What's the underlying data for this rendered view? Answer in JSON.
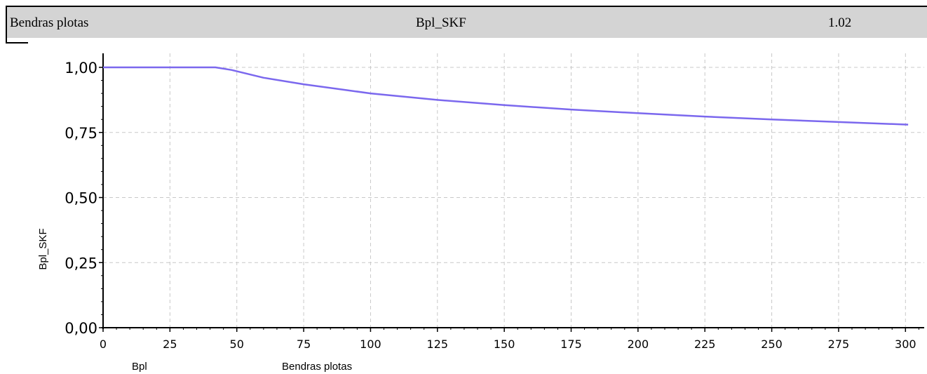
{
  "header": {
    "name": "Bendras plotas",
    "code": "Bpl_SKF",
    "version": "1.02"
  },
  "chart_data": {
    "type": "line",
    "title": "",
    "xlabel_code": "Bpl",
    "xlabel": "Bendras plotas",
    "ylabel": "Bpl_SKF",
    "xlim": [
      0,
      307
    ],
    "ylim": [
      0,
      1.0
    ],
    "x_ticks": [
      0,
      25,
      50,
      75,
      100,
      125,
      150,
      175,
      200,
      225,
      250,
      275,
      300
    ],
    "y_ticks": [
      0,
      0.25,
      0.5,
      0.75,
      1.0
    ],
    "x_tick_labels": [
      "0",
      "25",
      "50",
      "75",
      "100",
      "125",
      "150",
      "175",
      "200",
      "225",
      "250",
      "275",
      "300"
    ],
    "y_tick_labels": [
      "0,00",
      "0,25",
      "0,50",
      "0,75",
      "1,00"
    ],
    "grid": true,
    "line_color": "#7b68ee",
    "series": [
      {
        "x": [
          0,
          42,
          48,
          60,
          75,
          100,
          125,
          150,
          175,
          200,
          225,
          250,
          275,
          301
        ],
        "y": [
          1.0,
          1.0,
          0.99,
          0.96,
          0.935,
          0.9,
          0.875,
          0.855,
          0.838,
          0.824,
          0.811,
          0.8,
          0.79,
          0.78
        ]
      }
    ]
  }
}
